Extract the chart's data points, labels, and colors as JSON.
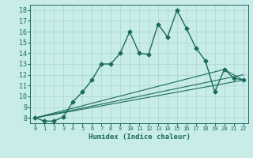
{
  "title": "",
  "xlabel": "Humidex (Indice chaleur)",
  "xlim": [
    -0.5,
    22.5
  ],
  "ylim": [
    7.5,
    18.5
  ],
  "xticks": [
    0,
    1,
    2,
    3,
    4,
    5,
    6,
    7,
    8,
    9,
    10,
    11,
    12,
    13,
    14,
    15,
    16,
    17,
    18,
    19,
    20,
    21,
    22
  ],
  "yticks": [
    8,
    9,
    10,
    11,
    12,
    13,
    14,
    15,
    16,
    17,
    18
  ],
  "bg_color": "#c8ece8",
  "grid_color": "#b0d8d2",
  "line_color": "#1a6b5e",
  "lines": [
    {
      "x": [
        0,
        1,
        2,
        3,
        4,
        5,
        6,
        7,
        8,
        9,
        10,
        11,
        12,
        13,
        14,
        15,
        16,
        17,
        18,
        19,
        20,
        21,
        22
      ],
      "y": [
        8.0,
        7.7,
        7.7,
        8.1,
        9.5,
        10.4,
        11.5,
        13.0,
        13.0,
        14.0,
        16.0,
        14.0,
        13.9,
        16.7,
        15.5,
        18.0,
        16.3,
        14.5,
        13.3,
        10.4,
        12.5,
        11.7,
        11.5
      ],
      "marker": "D",
      "markersize": 2.5,
      "linewidth": 1.0
    },
    {
      "x": [
        0,
        22
      ],
      "y": [
        8.0,
        11.5
      ],
      "marker": null,
      "linewidth": 0.8
    },
    {
      "x": [
        0,
        22
      ],
      "y": [
        8.0,
        12.0
      ],
      "marker": null,
      "linewidth": 0.8
    },
    {
      "x": [
        0,
        20,
        22
      ],
      "y": [
        8.0,
        12.5,
        11.5
      ],
      "marker": null,
      "linewidth": 0.8
    }
  ]
}
